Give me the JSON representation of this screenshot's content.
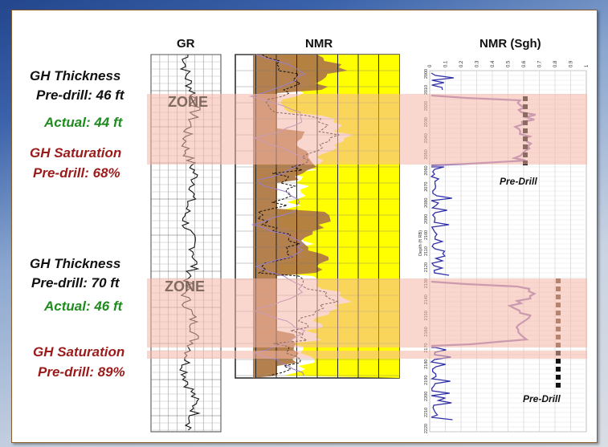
{
  "headers": {
    "gr": "GR",
    "nmr": "NMR",
    "nmr_sgh": "NMR (Sgh)"
  },
  "zones": [
    {
      "label": "ZONE",
      "thickness_title": "GH Thickness",
      "thickness_predrill": "Pre-drill: 46 ft",
      "thickness_actual": "Actual:  44 ft",
      "saturation_title": "GH Saturation",
      "saturation_predrill": "Pre-drill: 68%",
      "marker_label": "Pre-Drill"
    },
    {
      "label": "ZONE",
      "thickness_title": "GH Thickness",
      "thickness_predrill": "Pre-drill: 70 ft",
      "thickness_actual": "Actual:  46 ft",
      "saturation_title": "GH Saturation",
      "saturation_predrill": "Pre-drill: 89%",
      "marker_label": "Pre-Drill"
    }
  ],
  "sgh_axis": {
    "ticks": [
      "0",
      "0.1",
      "0.2",
      "0.3",
      "0.4",
      "0.5",
      "0.6",
      "0.7",
      "0.8",
      "0.9",
      "1"
    ],
    "depths": [
      "2000",
      "2010",
      "2020",
      "2030",
      "2040",
      "2050",
      "2060",
      "2070",
      "2080",
      "2090",
      "2100",
      "2110",
      "2120",
      "2130",
      "2140",
      "2150",
      "2160",
      "2170",
      "2180",
      "2190",
      "2200",
      "2210",
      "2220"
    ],
    "depth_title": "Depth (ft RB)"
  },
  "colors": {
    "zone_fill": "#f4b5a6",
    "porosity_fill": "#ffff00",
    "hydrate_fill": "#b07a45",
    "sgh_curve": "#3030a8",
    "sgh_curve_zone": "#9a7ab8",
    "predrill_marker": "#6b4a2a"
  }
}
